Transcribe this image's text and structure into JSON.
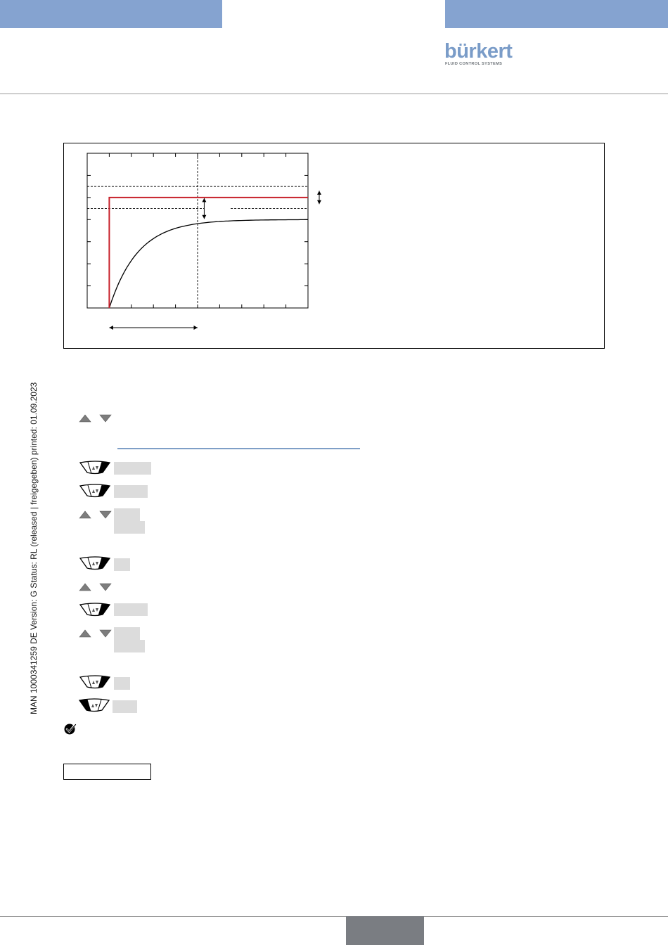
{
  "header": {
    "band_color": "#85a3d0",
    "logo": {
      "text": "bürkert",
      "tagline": "FLUID CONTROL SYSTEMS",
      "color": "#7a9cc8"
    }
  },
  "sidebar": {
    "document_stamp": "MAN  1000341259  DE  Version: G Status: RL (released | freigegeben)  printed: 01.09.2023"
  },
  "figure": {
    "chart_data": {
      "type": "line",
      "x_divisions": 10,
      "y_divisions": 7,
      "series": [
        {
          "kind": "step",
          "color": "#c8202a",
          "step_at_x": 1,
          "level_y": 5.0
        },
        {
          "kind": "exponential_rise",
          "color": "#000000",
          "start_x": 1,
          "final_y": 4.0,
          "time_constant": 1.3
        }
      ],
      "reference_lines_y": [
        5.5,
        4.5
      ],
      "reference_line_x": 5,
      "grid": false
    }
  },
  "steps": {
    "icons": [
      "triangle-keys",
      "softkey-right",
      "softkey-right",
      "triangle-keys",
      "softkey-right",
      "triangle-keys",
      "softkey-right",
      "triangle-keys",
      "softkey-right",
      "softkey-left"
    ]
  },
  "footer": {
    "tab_color": "#7a7d82"
  }
}
